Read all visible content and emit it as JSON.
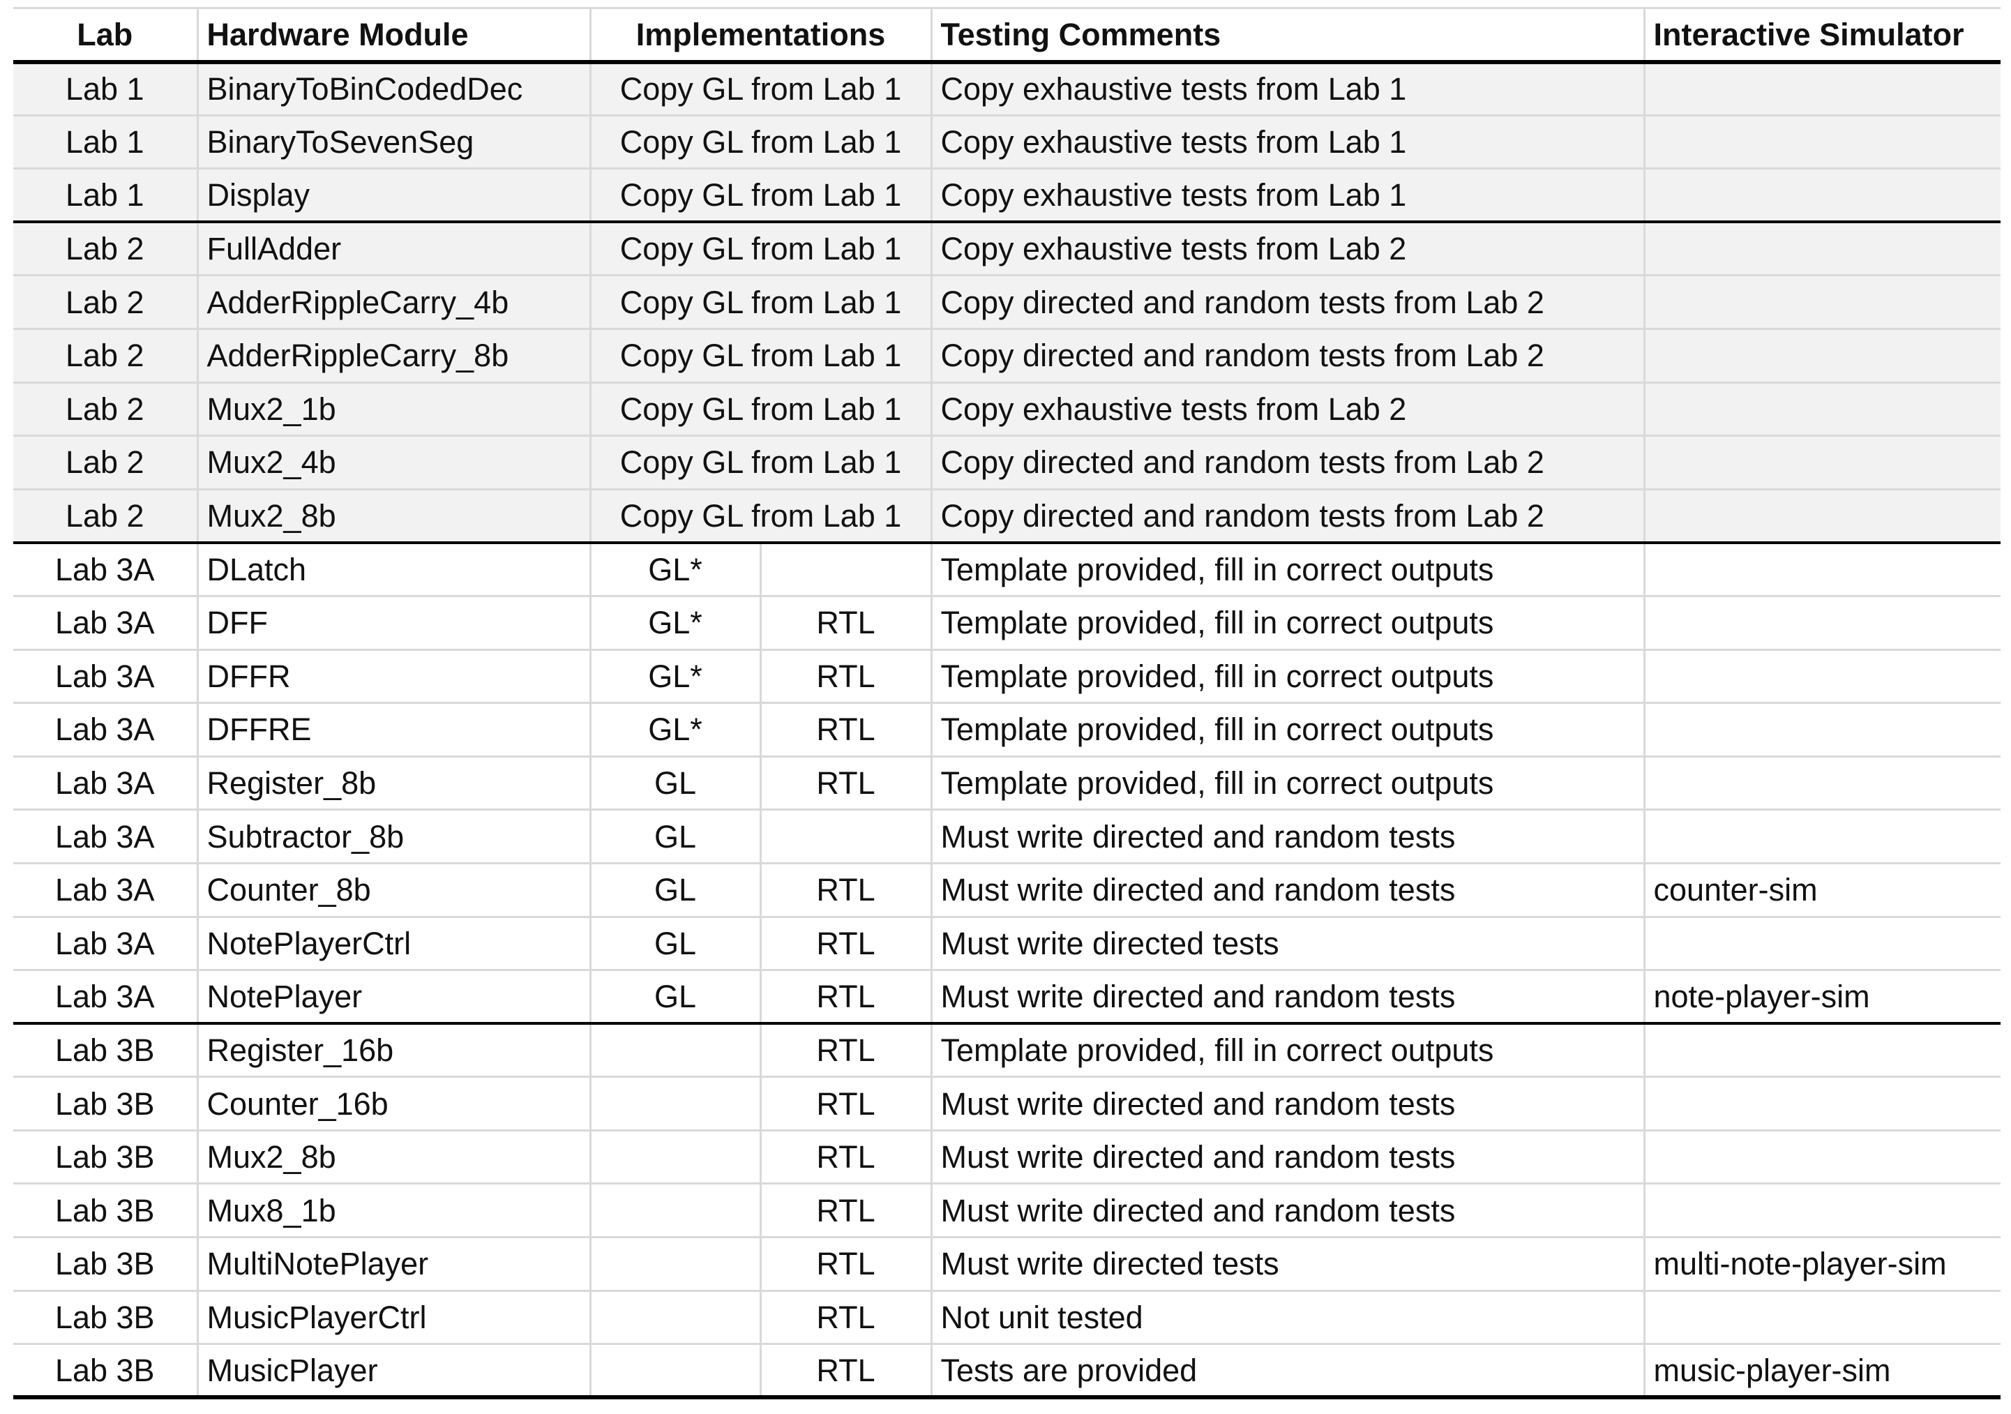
{
  "headers": {
    "lab": "Lab",
    "module": "Hardware Module",
    "impl": "Implementations",
    "testing": "Testing Comments",
    "sim": "Interactive Simulator"
  },
  "groups": [
    {
      "rows": [
        {
          "lab": "Lab 1",
          "module": "BinaryToBinCodedDec",
          "impl": "Copy GL from Lab 1",
          "testing": "Copy exhaustive tests from Lab 1",
          "sim": ""
        },
        {
          "lab": "Lab 1",
          "module": "BinaryToSevenSeg",
          "impl": "Copy GL from Lab 1",
          "testing": "Copy exhaustive tests from Lab 1",
          "sim": ""
        },
        {
          "lab": "Lab 1",
          "module": "Display",
          "impl": "Copy GL from Lab 1",
          "testing": "Copy exhaustive tests from Lab 1",
          "sim": ""
        }
      ]
    },
    {
      "rows": [
        {
          "lab": "Lab 2",
          "module": "FullAdder",
          "impl": "Copy GL from Lab 1",
          "testing": "Copy exhaustive tests from Lab 2",
          "sim": ""
        },
        {
          "lab": "Lab 2",
          "module": "AdderRippleCarry_4b",
          "impl": "Copy GL from Lab 1",
          "testing": "Copy directed and random tests from Lab 2",
          "sim": ""
        },
        {
          "lab": "Lab 2",
          "module": "AdderRippleCarry_8b",
          "impl": "Copy GL from Lab 1",
          "testing": "Copy directed and random tests from Lab 2",
          "sim": ""
        },
        {
          "lab": "Lab 2",
          "module": "Mux2_1b",
          "impl": "Copy GL from Lab 1",
          "testing": "Copy exhaustive tests from Lab 2",
          "sim": ""
        },
        {
          "lab": "Lab 2",
          "module": "Mux2_4b",
          "impl": "Copy GL from Lab 1",
          "testing": "Copy directed and random tests from Lab 2",
          "sim": ""
        },
        {
          "lab": "Lab 2",
          "module": "Mux2_8b",
          "impl": "Copy GL from Lab 1",
          "testing": "Copy directed and random tests from Lab 2",
          "sim": ""
        }
      ]
    },
    {
      "rows": [
        {
          "lab": "Lab 3A",
          "module": "DLatch",
          "gl": "GL*",
          "rtl": "",
          "testing": "Template provided, fill in correct outputs",
          "sim": ""
        },
        {
          "lab": "Lab 3A",
          "module": "DFF",
          "gl": "GL*",
          "rtl": "RTL",
          "testing": "Template provided, fill in correct outputs",
          "sim": ""
        },
        {
          "lab": "Lab 3A",
          "module": "DFFR",
          "gl": "GL*",
          "rtl": "RTL",
          "testing": "Template provided, fill in correct outputs",
          "sim": ""
        },
        {
          "lab": "Lab 3A",
          "module": "DFFRE",
          "gl": "GL*",
          "rtl": "RTL",
          "testing": "Template provided, fill in correct outputs",
          "sim": ""
        },
        {
          "lab": "Lab 3A",
          "module": "Register_8b",
          "gl": "GL",
          "rtl": "RTL",
          "testing": "Template provided, fill in correct outputs",
          "sim": ""
        },
        {
          "lab": "Lab 3A",
          "module": "Subtractor_8b",
          "gl": "GL",
          "rtl": "",
          "testing": "Must write directed and random tests",
          "sim": ""
        },
        {
          "lab": "Lab 3A",
          "module": "Counter_8b",
          "gl": "GL",
          "rtl": "RTL",
          "testing": "Must write directed and random tests",
          "sim": "counter-sim"
        },
        {
          "lab": "Lab 3A",
          "module": "NotePlayerCtrl",
          "gl": "GL",
          "rtl": "RTL",
          "testing": "Must write directed tests",
          "sim": ""
        },
        {
          "lab": "Lab 3A",
          "module": "NotePlayer",
          "gl": "GL",
          "rtl": "RTL",
          "testing": "Must write directed and random tests",
          "sim": "note-player-sim"
        }
      ]
    },
    {
      "rows": [
        {
          "lab": "Lab 3B",
          "module": "Register_16b",
          "gl": "",
          "rtl": "RTL",
          "testing": "Template provided, fill in correct outputs",
          "sim": ""
        },
        {
          "lab": "Lab 3B",
          "module": "Counter_16b",
          "gl": "",
          "rtl": "RTL",
          "testing": "Must write directed and random tests",
          "sim": ""
        },
        {
          "lab": "Lab 3B",
          "module": "Mux2_8b",
          "gl": "",
          "rtl": "RTL",
          "testing": "Must write directed and random tests",
          "sim": ""
        },
        {
          "lab": "Lab 3B",
          "module": "Mux8_1b",
          "gl": "",
          "rtl": "RTL",
          "testing": "Must write directed and random tests",
          "sim": ""
        },
        {
          "lab": "Lab 3B",
          "module": "MultiNotePlayer",
          "gl": "",
          "rtl": "RTL",
          "testing": "Must write directed tests",
          "sim": "multi-note-player-sim"
        },
        {
          "lab": "Lab 3B",
          "module": "MusicPlayerCtrl",
          "gl": "",
          "rtl": "RTL",
          "testing": "Not unit tested",
          "sim": ""
        },
        {
          "lab": "Lab 3B",
          "module": "MusicPlayer",
          "gl": "",
          "rtl": "RTL",
          "testing": "Tests are provided",
          "sim": "music-player-sim"
        }
      ]
    }
  ],
  "colors": {
    "shaded_row_bg": "#f2f2f2",
    "grid_line": "#d9d9d9",
    "separator_line": "#000000"
  }
}
